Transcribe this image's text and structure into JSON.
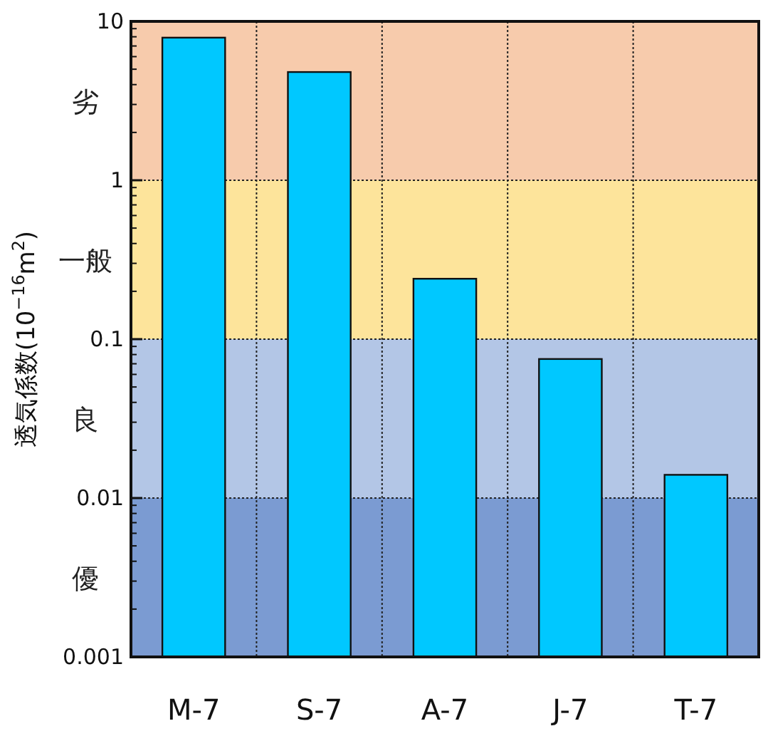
{
  "chart_data": {
    "type": "bar",
    "ylabel": "透気係数(10$^{−16}$m$^{2}$)",
    "categories": [
      "M-7",
      "S-7",
      "A-7",
      "J-7",
      "T-7"
    ],
    "values": [
      7.9,
      4.8,
      0.24,
      0.075,
      0.014
    ],
    "color": "#00c8ff",
    "log": true,
    "ylim": [
      0.001,
      10
    ],
    "yticks": [
      0.001,
      0.01,
      0.1,
      1,
      10
    ],
    "grid": true,
    "bands": [
      {
        "axis": "y",
        "from": 1,
        "to": 10,
        "label": "劣",
        "color": "#f7cbac"
      },
      {
        "axis": "y",
        "from": 0.1,
        "to": 1,
        "label": "一般",
        "color": "#fde49b"
      },
      {
        "axis": "y",
        "from": 0.01,
        "to": 0.1,
        "label": "良",
        "color": "#b3c6e6"
      },
      {
        "axis": "y",
        "from": 0.001,
        "to": 0.01,
        "label": "優",
        "color": "#7b9bd2"
      }
    ]
  }
}
